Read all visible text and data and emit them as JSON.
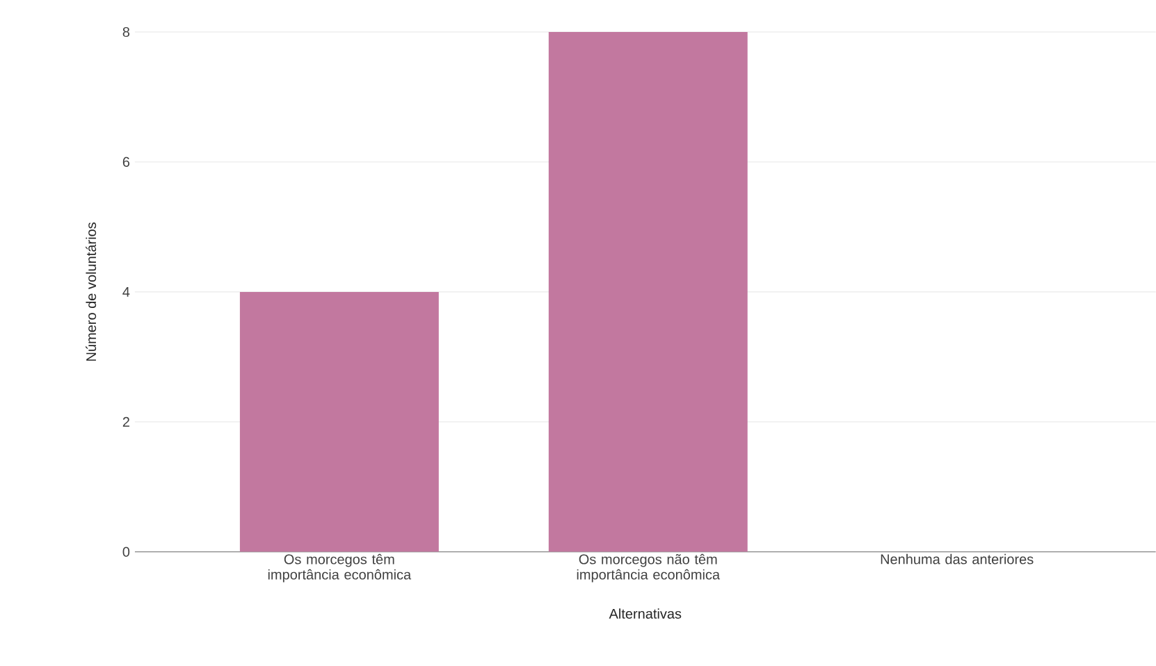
{
  "chart_data": {
    "type": "bar",
    "xlabel": "Alternativas",
    "ylabel": "Número de voluntários",
    "categories": [
      "Os morcegos têm importância econômica",
      "Os morcegos não têm importância econômica",
      "Nenhuma das anteriores"
    ],
    "values": [
      4,
      8,
      0
    ],
    "color": "#c2789f",
    "ylim": [
      0,
      8
    ],
    "yticks": [
      0,
      2,
      4,
      6,
      8
    ],
    "grid": "y"
  }
}
